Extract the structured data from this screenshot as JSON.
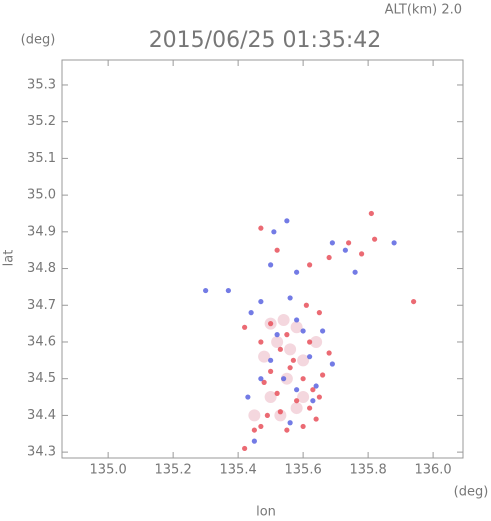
{
  "chart_data": {
    "type": "scatter",
    "title": "2015/06/25 01:35:42",
    "annotation": "ALT(km) 2.0",
    "x_unit": "(deg)",
    "y_unit": "(deg)",
    "xlabel": "lon",
    "ylabel": "lat",
    "xlim": [
      134.858,
      136.092
    ],
    "ylim": [
      34.284,
      35.368
    ],
    "xticks": [
      {
        "value": 135.0,
        "label": "135.0"
      },
      135.2,
      135.4,
      135.6,
      135.8,
      {
        "value": 136.0,
        "label": "136.0"
      }
    ],
    "yticks": [
      34.3,
      34.4,
      34.5,
      34.6,
      34.7,
      34.8,
      34.9,
      {
        "value": 35.0,
        "label": "35.0"
      },
      35.1,
      35.2,
      35.3
    ],
    "grid": false,
    "series": [
      {
        "color": "#f2d0d8",
        "x": [
          135.5,
          135.54,
          135.58,
          135.52,
          135.56,
          135.6,
          135.55,
          135.6,
          135.5,
          135.45,
          135.53,
          135.58,
          135.64,
          135.48
        ],
        "y": [
          34.65,
          34.66,
          34.64,
          34.6,
          34.58,
          34.55,
          34.5,
          34.45,
          34.45,
          34.4,
          34.4,
          34.42,
          34.6,
          34.56
        ]
      },
      {
        "color": "#e8505a",
        "x": [
          135.42,
          135.45,
          135.47,
          135.55,
          135.62,
          135.65,
          135.63,
          135.58,
          135.52,
          135.5,
          135.56,
          135.6,
          135.66,
          135.68,
          135.62,
          135.55,
          135.5,
          135.47,
          135.42,
          135.61,
          135.65,
          135.57,
          135.53,
          135.48,
          135.94,
          135.81,
          135.82,
          135.74,
          135.68,
          135.62,
          135.52,
          135.47,
          135.78,
          135.64,
          135.6,
          135.53,
          135.49
        ],
        "y": [
          34.31,
          34.36,
          34.37,
          34.36,
          34.42,
          34.45,
          34.47,
          34.44,
          34.46,
          34.52,
          34.53,
          34.5,
          34.51,
          34.57,
          34.6,
          34.62,
          34.65,
          34.6,
          34.64,
          34.7,
          34.68,
          34.55,
          34.58,
          34.49,
          34.71,
          34.95,
          34.88,
          34.87,
          34.83,
          34.81,
          34.85,
          34.91,
          34.84,
          34.39,
          34.37,
          34.41,
          34.4
        ]
      },
      {
        "color": "#5a64e0",
        "x": [
          135.45,
          135.43,
          135.54,
          135.64,
          135.58,
          135.5,
          135.62,
          135.69,
          135.52,
          135.58,
          135.56,
          135.44,
          135.6,
          135.66,
          135.47,
          135.5,
          135.69,
          135.73,
          135.76,
          135.58,
          135.55,
          135.51,
          135.88,
          135.37,
          135.3,
          135.63,
          135.47,
          135.56
        ],
        "y": [
          34.33,
          34.45,
          34.5,
          34.48,
          34.47,
          34.55,
          34.56,
          34.54,
          34.62,
          34.66,
          34.72,
          34.68,
          34.63,
          34.63,
          34.71,
          34.81,
          34.87,
          34.85,
          34.79,
          34.79,
          34.93,
          34.9,
          34.87,
          34.74,
          34.74,
          34.44,
          34.5,
          34.38
        ]
      }
    ]
  }
}
